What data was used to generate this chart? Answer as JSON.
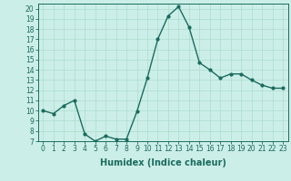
{
  "x": [
    0,
    1,
    2,
    3,
    4,
    5,
    6,
    7,
    8,
    9,
    10,
    11,
    12,
    13,
    14,
    15,
    16,
    17,
    18,
    19,
    20,
    21,
    22,
    23
  ],
  "y": [
    10,
    9.7,
    10.5,
    11,
    7.7,
    7.0,
    7.5,
    7.2,
    7.2,
    9.9,
    13.2,
    17.0,
    19.3,
    20.2,
    18.2,
    14.7,
    14.0,
    13.2,
    13.6,
    13.6,
    13.0,
    12.5,
    12.2,
    12.2
  ],
  "line_color": "#1a6b5e",
  "marker": "o",
  "marker_size": 2,
  "line_width": 1.0,
  "bg_color": "#cceee8",
  "grid_color": "#aaddcc",
  "xlabel": "Humidex (Indice chaleur)",
  "xlim": [
    -0.5,
    23.5
  ],
  "ylim": [
    7,
    20.5
  ],
  "yticks": [
    7,
    8,
    9,
    10,
    11,
    12,
    13,
    14,
    15,
    16,
    17,
    18,
    19,
    20
  ],
  "xtick_labels": [
    "0",
    "1",
    "2",
    "3",
    "4",
    "5",
    "6",
    "7",
    "8",
    "9",
    "10",
    "11",
    "12",
    "13",
    "14",
    "15",
    "16",
    "17",
    "18",
    "19",
    "20",
    "21",
    "22",
    "23"
  ],
  "tick_color": "#1a6b5e",
  "label_color": "#1a6b5e",
  "tick_fontsize": 5.5,
  "xlabel_fontsize": 7.0
}
